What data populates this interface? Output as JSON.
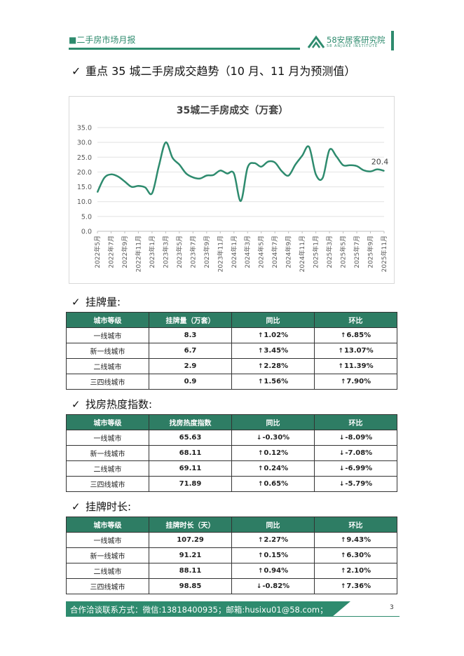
{
  "header": {
    "title": "■二手房市场月报",
    "logo_text": "58安居客研究院",
    "logo_sub": "58 ANJUKE INSTITUTE"
  },
  "main_heading": "重点 35 城二手房成交趋势（10 月、11 月为预测值）",
  "check_mark": "✓",
  "chart_data": {
    "type": "line",
    "title": "35城二手房成交（万套）",
    "ylim": [
      0,
      35
    ],
    "yticks": [
      "0.0",
      "5.0",
      "10.0",
      "15.0",
      "20.0",
      "25.0",
      "30.0",
      "35.0"
    ],
    "grid": true,
    "color": "#2e8b6e",
    "categories": [
      "2022年5月",
      "2022年6月",
      "2022年7月",
      "2022年8月",
      "2022年9月",
      "2022年10月",
      "2022年11月",
      "2022年12月",
      "2023年1月",
      "2023年2月",
      "2023年3月",
      "2023年4月",
      "2023年5月",
      "2023年6月",
      "2023年7月",
      "2023年8月",
      "2023年9月",
      "2023年10月",
      "2023年11月",
      "2023年12月",
      "2024年1月",
      "2024年2月",
      "2024年3月",
      "2024年4月",
      "2024年5月",
      "2024年6月",
      "2024年7月",
      "2024年8月",
      "2024年9月",
      "2024年10月",
      "2024年11月",
      "2024年12月",
      "2025年1月",
      "2025年2月",
      "2025年3月",
      "2025年4月",
      "2025年5月",
      "2025年6月",
      "2025年7月",
      "2025年8月",
      "2025年9月",
      "2025年10月",
      "2025年11月"
    ],
    "tick_labels": [
      "2022年5月",
      "2022年7月",
      "2022年9月",
      "2022年11月",
      "2023年1月",
      "2023年3月",
      "2023年5月",
      "2023年7月",
      "2023年9月",
      "2023年11月",
      "2024年1月",
      "2024年3月",
      "2024年5月",
      "2024年7月",
      "2024年9月",
      "2024年11月",
      "2025年1月",
      "2025年3月",
      "2025年5月",
      "2025年7月",
      "2025年9月",
      "2025年11月"
    ],
    "values": [
      13.2,
      18.0,
      19.2,
      18.5,
      16.8,
      15.0,
      15.3,
      14.8,
      12.8,
      22.0,
      30.0,
      24.8,
      22.5,
      19.5,
      18.2,
      17.8,
      18.8,
      19.0,
      20.5,
      19.5,
      19.5,
      10.2,
      21.5,
      23.0,
      21.8,
      23.5,
      23.2,
      20.3,
      18.8,
      22.5,
      25.5,
      28.5,
      19.2,
      18.0,
      27.5,
      25.3,
      22.3,
      22.3,
      22.0,
      20.6,
      20.2,
      20.9,
      20.4
    ],
    "data_label": "20.4"
  },
  "listing_section": {
    "heading": "挂牌量:",
    "columns": [
      "城市等级",
      "挂牌量（万套）",
      "同比",
      "环比"
    ],
    "rows": [
      {
        "city": "一线城市",
        "value": "8.3",
        "yoy": "1.02%",
        "yoy_dir": "up",
        "mom": "6.85%",
        "mom_dir": "up"
      },
      {
        "city": "新一线城市",
        "value": "6.7",
        "yoy": "3.45%",
        "yoy_dir": "up",
        "mom": "13.07%",
        "mom_dir": "up"
      },
      {
        "city": "二线城市",
        "value": "2.9",
        "yoy": "2.28%",
        "yoy_dir": "up",
        "mom": "11.39%",
        "mom_dir": "up"
      },
      {
        "city": "三四线城市",
        "value": "0.9",
        "yoy": "1.56%",
        "yoy_dir": "up",
        "mom": "7.90%",
        "mom_dir": "up"
      }
    ]
  },
  "heat_section": {
    "heading": "找房热度指数:",
    "columns": [
      "城市等级",
      "找房热度指数",
      "同比",
      "环比"
    ],
    "rows": [
      {
        "city": "一线城市",
        "value": "65.63",
        "yoy": "-0.30%",
        "yoy_dir": "down",
        "mom": "-8.09%",
        "mom_dir": "down"
      },
      {
        "city": "新一线城市",
        "value": "68.11",
        "yoy": "0.12%",
        "yoy_dir": "up",
        "mom": "-7.08%",
        "mom_dir": "down"
      },
      {
        "city": "二线城市",
        "value": "69.11",
        "yoy": "0.24%",
        "yoy_dir": "up",
        "mom": "-6.99%",
        "mom_dir": "down"
      },
      {
        "city": "三四线城市",
        "value": "71.89",
        "yoy": "0.65%",
        "yoy_dir": "up",
        "mom": "-5.79%",
        "mom_dir": "down"
      }
    ]
  },
  "duration_section": {
    "heading": "挂牌时长:",
    "columns": [
      "城市等级",
      "挂牌时长（天）",
      "同比",
      "环比"
    ],
    "rows": [
      {
        "city": "一线城市",
        "value": "107.29",
        "yoy": "2.27%",
        "yoy_dir": "up",
        "mom": "9.43%",
        "mom_dir": "up"
      },
      {
        "city": "新一线城市",
        "value": "91.21",
        "yoy": "0.15%",
        "yoy_dir": "up",
        "mom": "6.30%",
        "mom_dir": "up"
      },
      {
        "city": "二线城市",
        "value": "88.11",
        "yoy": "0.94%",
        "yoy_dir": "up",
        "mom": "2.10%",
        "mom_dir": "up"
      },
      {
        "city": "三四线城市",
        "value": "98.85",
        "yoy": "-0.82%",
        "yoy_dir": "down",
        "mom": "7.36%",
        "mom_dir": "up"
      }
    ]
  },
  "footer": {
    "contact": "合作洽谈联系方式：微信:13818400935；邮箱:husixu01@58.com；",
    "page": "3"
  }
}
